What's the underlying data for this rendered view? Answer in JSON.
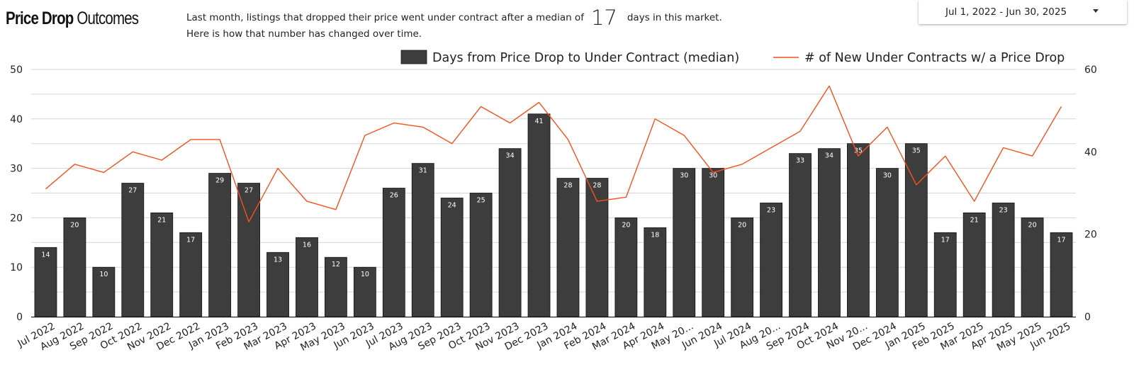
{
  "header": {
    "title_bold": "Price Drop",
    "title_light": "Outcomes",
    "desc_line1_pre": "Last month,  listings that dropped their price went under contract after a median of",
    "desc_value": "17",
    "desc_line1_post": "days in this market.",
    "desc_line2": "Here is how that number has changed over time.",
    "date_range": "Jul 1, 2022 - Jun 30, 2025"
  },
  "chart_data": {
    "type": "bar",
    "categories": [
      "Jul 2022",
      "Aug 2022",
      "Sep 2022",
      "Oct 2022",
      "Nov 2022",
      "Dec 2022",
      "Jan 2023",
      "Feb 2023",
      "Mar 2023",
      "Apr 2023",
      "May 2023",
      "Jun 2023",
      "Jul 2023",
      "Aug 2023",
      "Sep 2023",
      "Oct 2023",
      "Nov 2023",
      "Dec 2023",
      "Jan 2024",
      "Feb 2024",
      "Mar 2024",
      "Apr 2024",
      "May 20...",
      "Jun 2024",
      "Jul 2024",
      "Aug 20...",
      "Sep 2024",
      "Oct 2024",
      "Nov 20...",
      "Dec 2024",
      "Jan 2025",
      "Feb 2025",
      "Mar 2025",
      "Apr 2025",
      "May 2025",
      "Jun 2025"
    ],
    "series": [
      {
        "name": "Days from Price Drop to Under Contract (median)",
        "type": "bar",
        "axis": "left",
        "color": "#3d3d3d",
        "values": [
          14,
          20,
          10,
          27,
          21,
          17,
          29,
          27,
          13,
          16,
          12,
          10,
          26,
          31,
          24,
          25,
          34,
          41,
          28,
          28,
          20,
          18,
          30,
          30,
          20,
          23,
          33,
          34,
          35,
          30,
          35,
          17,
          21,
          23,
          20,
          17
        ]
      },
      {
        "name": "# of New Under Contracts w/ a Price Drop",
        "type": "line",
        "axis": "right",
        "color": "#f4511e",
        "values": [
          31,
          37,
          35,
          40,
          38,
          43,
          43,
          23,
          36,
          28,
          26,
          44,
          47,
          46,
          42,
          51,
          47,
          52,
          43,
          28,
          29,
          48,
          44,
          35,
          37,
          41,
          45,
          56,
          39,
          46,
          32,
          39,
          28,
          41,
          39,
          51
        ]
      }
    ],
    "ylim_left": [
      0,
      50
    ],
    "yticks_left": [
      "0",
      "10",
      "20",
      "30",
      "40",
      "50"
    ],
    "ylim_right": [
      0,
      60
    ],
    "yticks_right": [
      "0",
      "20",
      "40",
      "60"
    ],
    "grid": true,
    "legend_position": "top-right"
  }
}
